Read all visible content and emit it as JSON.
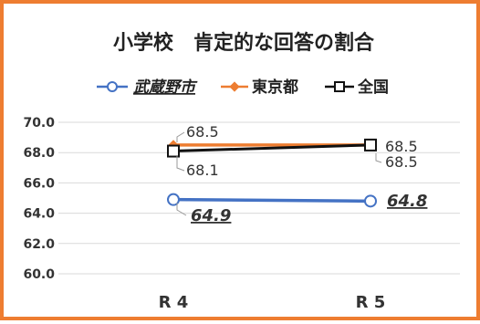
{
  "chart_data": {
    "type": "line",
    "title": "小学校　肯定的な回答の割合",
    "categories": [
      "R 4",
      "R 5"
    ],
    "ylim": [
      60.0,
      70.0
    ],
    "yticks": [
      "70.0",
      "68.0",
      "66.0",
      "64.0",
      "62.0",
      "60.0"
    ],
    "grid": true,
    "legend_position": "top",
    "series": [
      {
        "name": "武蔵野市",
        "values": [
          64.9,
          64.8
        ],
        "labels": [
          "64.9",
          "64.8"
        ],
        "color": "#4472c4",
        "marker": "circle"
      },
      {
        "name": "東京都",
        "values": [
          68.5,
          68.5
        ],
        "labels": [
          "68.5",
          "68.5"
        ],
        "color": "#ed7d31",
        "marker": "diamond"
      },
      {
        "name": "全国",
        "values": [
          68.1,
          68.5
        ],
        "labels": [
          "68.1",
          "68.5"
        ],
        "color": "#111111",
        "marker": "square"
      }
    ]
  }
}
